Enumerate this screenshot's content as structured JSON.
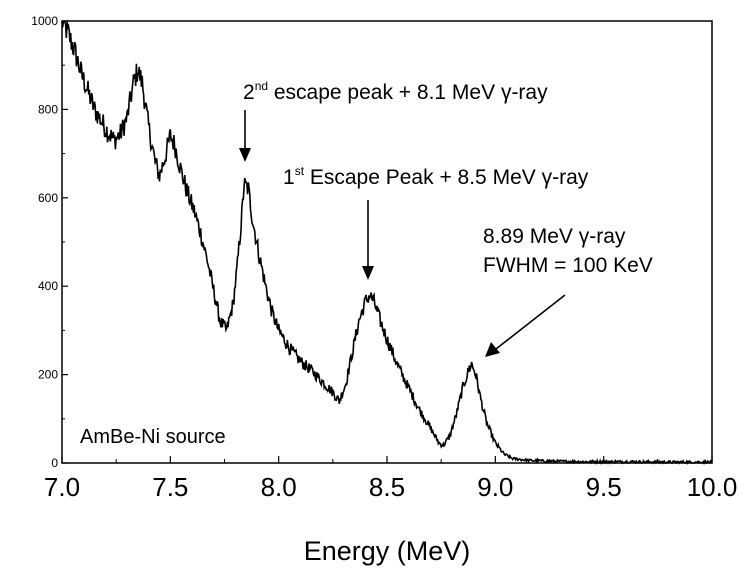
{
  "chart_data": {
    "type": "line",
    "title": "",
    "xlabel": "Energy (MeV)",
    "ylabel": "",
    "xlim": [
      7.0,
      10.0
    ],
    "ylim": [
      0,
      1000
    ],
    "xticks": [
      "7.0",
      "7.5",
      "8.0",
      "8.5",
      "9.0",
      "9.5",
      "10.0"
    ],
    "yticks": [
      "0",
      "200",
      "400",
      "600",
      "800",
      "1000"
    ],
    "grid": false,
    "legend": "none",
    "source_label": "AmBe-Ni source",
    "series": [
      {
        "x": [
          7.0,
          7.03,
          7.06,
          7.09,
          7.12,
          7.15,
          7.18,
          7.21,
          7.24,
          7.27,
          7.3,
          7.33,
          7.35,
          7.37,
          7.4,
          7.43,
          7.45,
          7.48,
          7.5,
          7.52,
          7.55,
          7.58,
          7.61,
          7.64,
          7.67,
          7.7,
          7.73,
          7.76,
          7.79,
          7.81,
          7.83,
          7.84,
          7.86,
          7.88,
          7.91,
          7.94,
          7.97,
          8.0,
          8.05,
          8.1,
          8.15,
          8.2,
          8.25,
          8.28,
          8.31,
          8.34,
          8.37,
          8.4,
          8.42,
          8.44,
          8.47,
          8.5,
          8.55,
          8.6,
          8.65,
          8.7,
          8.74,
          8.76,
          8.79,
          8.82,
          8.85,
          8.88,
          8.89,
          8.91,
          8.93,
          8.96,
          9.0,
          9.04,
          9.08,
          9.15,
          9.25,
          9.4,
          9.6,
          9.8,
          10.0
        ],
        "y": [
          1000,
          970,
          930,
          880,
          840,
          800,
          775,
          750,
          730,
          745,
          780,
          860,
          890,
          860,
          760,
          680,
          650,
          700,
          740,
          720,
          660,
          610,
          570,
          520,
          460,
          390,
          320,
          300,
          360,
          450,
          560,
          630,
          620,
          550,
          470,
          400,
          340,
          300,
          260,
          230,
          210,
          185,
          160,
          140,
          180,
          250,
          320,
          365,
          380,
          365,
          320,
          280,
          220,
          170,
          120,
          80,
          45,
          40,
          60,
          110,
          170,
          215,
          225,
          200,
          150,
          90,
          45,
          20,
          10,
          6,
          4,
          3,
          3,
          2,
          2
        ]
      }
    ],
    "annotations": [
      {
        "main": "2",
        "sup": "nd",
        "rest": " escape peak + 8.1 MeV γ-ray"
      },
      {
        "main": "1",
        "sup": "st",
        "rest": " Escape Peak + 8.5 MeV γ-ray"
      },
      {
        "line1": "8.89 MeV γ-ray",
        "line2": "FWHM = 100 KeV"
      }
    ]
  }
}
